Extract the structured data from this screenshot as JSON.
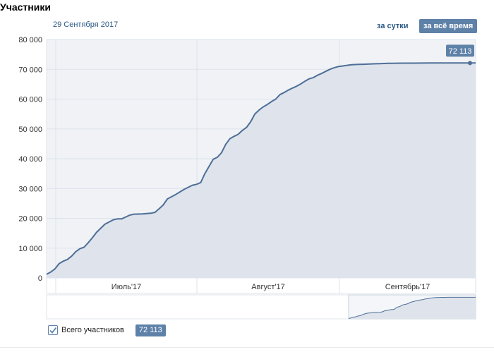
{
  "header": {
    "title": "Участники",
    "date": "29 Сентября 2017",
    "period_day": "за сутки",
    "period_all": "за всё время"
  },
  "legend": {
    "label": "Всего участников",
    "value": "72 113",
    "checked": true
  },
  "colors": {
    "line": "#4e6f96",
    "area": "#dee3ec",
    "plot_bg": "#f0f2f6",
    "grid": "#dde3ec",
    "badge": "#5e81a8"
  },
  "chart_data": {
    "type": "area",
    "x": [
      "2017-06-18",
      "2017-06-19",
      "2017-06-20",
      "2017-06-21",
      "2017-06-22",
      "2017-06-23",
      "2017-06-24",
      "2017-06-25",
      "2017-06-26",
      "2017-06-27",
      "2017-06-28",
      "2017-06-29",
      "2017-06-30",
      "2017-07-02",
      "2017-07-04",
      "2017-07-05",
      "2017-07-06",
      "2017-07-08",
      "2017-07-09",
      "2017-07-11",
      "2017-07-13",
      "2017-07-14",
      "2017-07-15",
      "2017-07-16",
      "2017-07-17",
      "2017-07-19",
      "2017-07-21",
      "2017-07-23",
      "2017-07-24",
      "2017-07-25",
      "2017-07-26",
      "2017-07-28",
      "2017-07-29",
      "2017-07-30",
      "2017-07-31",
      "2017-08-01",
      "2017-08-02",
      "2017-08-03",
      "2017-08-04",
      "2017-08-05",
      "2017-08-06",
      "2017-08-07",
      "2017-08-08",
      "2017-08-09",
      "2017-08-10",
      "2017-08-11",
      "2017-08-12",
      "2017-08-13",
      "2017-08-14",
      "2017-08-15",
      "2017-08-16",
      "2017-08-17",
      "2017-08-18",
      "2017-08-19",
      "2017-08-20",
      "2017-08-21",
      "2017-08-22",
      "2017-08-23",
      "2017-08-24",
      "2017-08-25",
      "2017-08-26",
      "2017-08-27",
      "2017-08-28",
      "2017-08-29",
      "2017-08-30",
      "2017-08-31",
      "2017-09-01",
      "2017-09-02",
      "2017-09-03",
      "2017-09-04",
      "2017-09-05",
      "2017-09-06",
      "2017-09-07",
      "2017-09-08",
      "2017-09-09",
      "2017-09-10",
      "2017-09-12",
      "2017-09-14",
      "2017-09-16",
      "2017-09-18",
      "2017-09-20",
      "2017-09-22",
      "2017-09-24",
      "2017-09-25",
      "2017-09-26",
      "2017-09-27",
      "2017-09-28",
      "2017-09-29"
    ],
    "series": [
      {
        "name": "Всего участников",
        "values": [
          1200,
          2000,
          3000,
          4800,
          5600,
          6200,
          7300,
          8800,
          9800,
          10300,
          11800,
          13500,
          15300,
          18000,
          19500,
          19800,
          19800,
          21100,
          21400,
          21500,
          21700,
          22000,
          23200,
          24500,
          26500,
          28000,
          29700,
          31100,
          31400,
          32000,
          35000,
          39800,
          40500,
          42000,
          44800,
          46700,
          47500,
          48200,
          49500,
          50500,
          52400,
          55000,
          56300,
          57400,
          58200,
          59200,
          60000,
          61500,
          62200,
          63000,
          63700,
          64300,
          65100,
          66000,
          66800,
          67200,
          68000,
          68600,
          69300,
          70000,
          70500,
          70900,
          71100,
          71300,
          71500,
          71600,
          71650,
          71700,
          71750,
          71800,
          71850,
          71900,
          71950,
          72000,
          72020,
          72040,
          72060,
          72080,
          72100,
          72110,
          72113,
          72113,
          72113,
          72113,
          72113,
          72113,
          72113,
          72113
        ]
      }
    ],
    "ylim": [
      0,
      80000
    ],
    "yticks": [
      "0",
      "10 000",
      "20 000",
      "30 000",
      "40 000",
      "50 000",
      "60 000",
      "70 000",
      "80 000"
    ],
    "xticks": [
      "Июль'17",
      "Август'17",
      "Сентябрь'17"
    ],
    "last_value_label": "72 113",
    "grid": true
  }
}
